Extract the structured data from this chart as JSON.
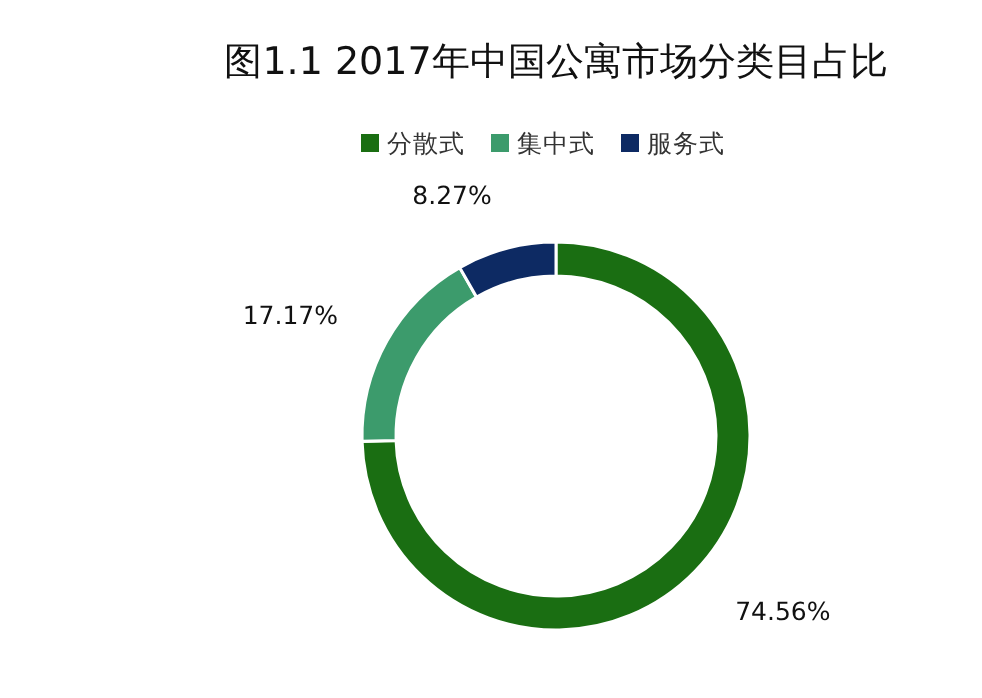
{
  "chart_data": {
    "type": "donut",
    "title": "图1.1 2017年中国公寓市场分类目占比",
    "categories": [
      "分散式",
      "集中式",
      "服务式"
    ],
    "values": [
      74.56,
      17.17,
      8.27
    ],
    "colors": [
      "#1a6e12",
      "#3c9b6c",
      "#0d2a63"
    ],
    "value_labels": [
      "74.56%",
      "17.17%",
      "8.27%"
    ],
    "legend": "top"
  }
}
